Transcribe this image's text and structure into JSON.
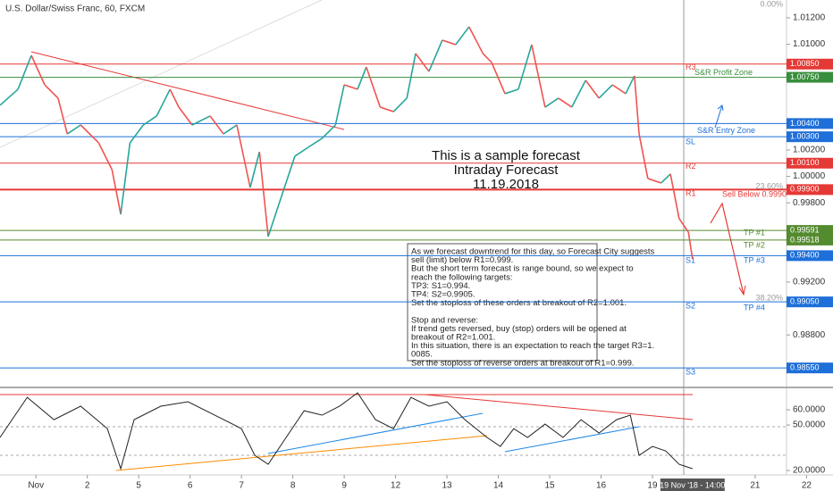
{
  "chart_data": {
    "type": "line",
    "title": "U.S. Dollar/Swiss Franc, 60, FXCM",
    "forecast_title": [
      "This is a sample forecast",
      "Intraday Forecast",
      "11.19.2018"
    ],
    "note": [
      "As we forecast downtrend for this day, so Forecast City suggests",
      "sell (limit) below R1=0.999.",
      "But the short term forecast is range bound, so we expect to",
      "reach the following targets:",
      "TP3: S1=0.994.",
      "TP4: S2=0.9905.",
      "Set the stoploss of these orders at breakout of R2=1.001.",
      "Stop and reverse:",
      "If trend gets reversed, buy (stop) orders will be opened at",
      "breakout of R2=1.001.",
      "In this situation, there is an expectation to reach the target R3=1.",
      "0085.",
      "Set the stoploss of reverse orders at breakout of R1=0.999."
    ],
    "x": [
      -0.7,
      -0.35,
      -0.09,
      0.17,
      0.43,
      0.61,
      0.87,
      1.22,
      1.48,
      1.65,
      1.83,
      2.09,
      2.35,
      2.61,
      2.78,
      3.04,
      3.39,
      3.65,
      3.91,
      4.17,
      4.35,
      4.52,
      4.78,
      5.04,
      5.3,
      5.57,
      5.83,
      6.0,
      6.26,
      6.43,
      6.7,
      6.96,
      7.22,
      7.39,
      7.65,
      7.91,
      8.17,
      8.43,
      8.7,
      8.87,
      9.13,
      9.39,
      9.65,
      9.91,
      10.17,
      10.43,
      10.7,
      10.96,
      11.22,
      11.48,
      11.65,
      11.74,
      11.91,
      12.17,
      12.35,
      12.52,
      12.7,
      12.78
    ],
    "values": [
      1.00538,
      1.00659,
      1.00916,
      1.00693,
      1.00592,
      1.00321,
      1.00389,
      1.00254,
      1.00051,
      0.99713,
      1.00254,
      1.00389,
      1.00457,
      1.00659,
      1.00524,
      1.00389,
      1.00457,
      1.00321,
      1.00389,
      0.99916,
      1.00186,
      0.99544,
      0.99849,
      1.00153,
      1.0022,
      1.00288,
      1.00389,
      1.00693,
      1.00659,
      1.00828,
      1.00524,
      1.0049,
      1.00592,
      1.0093,
      1.00794,
      1.01031,
      1.00997,
      1.01132,
      1.0093,
      1.00862,
      1.00626,
      1.00659,
      1.00997,
      1.00524,
      1.00592,
      1.00524,
      1.00727,
      1.00592,
      1.00693,
      1.00626,
      1.00761,
      1.00321,
      0.99984,
      0.9995,
      1.00018,
      0.9968,
      0.99578,
      0.99375
    ],
    "up_color": "#26a69a",
    "down_color": "#ef5350",
    "xlim": [
      -0.7,
      14.61
    ],
    "xticks": [
      {
        "value": 0,
        "label": "Nov"
      },
      {
        "value": 1,
        "label": "2"
      },
      {
        "value": 2,
        "label": "5"
      },
      {
        "value": 3,
        "label": "6"
      },
      {
        "value": 4,
        "label": "7"
      },
      {
        "value": 5,
        "label": "8"
      },
      {
        "value": 6,
        "label": "9"
      },
      {
        "value": 7,
        "label": "12"
      },
      {
        "value": 8,
        "label": "13"
      },
      {
        "value": 9,
        "label": "14"
      },
      {
        "value": 10,
        "label": "15"
      },
      {
        "value": 11,
        "label": "16"
      },
      {
        "value": 12,
        "label": "19"
      },
      {
        "value": 14,
        "label": "21"
      },
      {
        "value": 15,
        "label": "22"
      }
    ],
    "crosshair": {
      "value": 12.78,
      "label": "19 Nov '18 - 14:00"
    },
    "ylim": [
      0.98416,
      1.01335
    ],
    "yticks": [
      {
        "value": 1.012,
        "label": "1.01200"
      },
      {
        "value": 1.01,
        "label": "1.01000"
      },
      {
        "value": 1.002,
        "label": "1.00200"
      },
      {
        "value": 1.0,
        "label": "1.00000"
      },
      {
        "value": 0.998,
        "label": "0.99800"
      },
      {
        "value": 0.992,
        "label": "0.99200"
      },
      {
        "value": 0.988,
        "label": "0.98800"
      }
    ],
    "levels": [
      {
        "value": 1.0085,
        "label": "1.00850",
        "color": "#e53935",
        "tag": "R3"
      },
      {
        "value": 1.0075,
        "label": "1.00750",
        "color": "#388e3c",
        "tag": "S&R Profit Zone"
      },
      {
        "value": 1.004,
        "label": "1.00400",
        "color": "#1e6fd9",
        "tag": "S&R Entry Zone"
      },
      {
        "value": 1.003,
        "label": "1.00300",
        "color": "#1e6fd9",
        "tag": "SL"
      },
      {
        "value": 1.001,
        "label": "1.00100",
        "color": "#e53935",
        "tag": "R2"
      },
      {
        "value": 0.999,
        "label": "0.99900",
        "color": "#e53935",
        "tag": "R1"
      },
      {
        "value": 0.99591,
        "label": "0.99591",
        "color": "#558b2f",
        "tag": "TP #1"
      },
      {
        "value": 0.99518,
        "label": "0.99518",
        "color": "#558b2f",
        "tag": "TP #2"
      },
      {
        "value": 0.994,
        "label": "0.99400",
        "color": "#1e6fd9",
        "tag": "S1"
      },
      {
        "value": 0.9905,
        "label": "0.99050",
        "color": "#1e6fd9",
        "tag": "S2"
      },
      {
        "value": 0.9855,
        "label": "0.98550",
        "color": "#1e6fd9",
        "tag": "S3"
      }
    ],
    "extra_tags": [
      "Sell Below 0.9990",
      "TP #3",
      "TP #4"
    ],
    "fib_labels": [
      "0.00%",
      "23.60%",
      "38.20%"
    ],
    "rsi": {
      "x": [
        -0.7,
        -0.17,
        0.35,
        0.87,
        1.39,
        1.65,
        1.91,
        2.43,
        2.96,
        3.48,
        4.0,
        4.26,
        4.52,
        4.87,
        5.22,
        5.57,
        5.91,
        6.26,
        6.61,
        6.96,
        7.3,
        7.65,
        8.0,
        8.35,
        8.78,
        9.04,
        9.3,
        9.57,
        9.91,
        10.26,
        10.61,
        10.96,
        11.3,
        11.57,
        11.74,
        12.0,
        12.26,
        12.52,
        12.78
      ],
      "values": [
        41.8,
        68.2,
        53.5,
        62.4,
        47.6,
        21.2,
        53.5,
        62.4,
        65.3,
        56.5,
        47.6,
        30.0,
        24.1,
        41.8,
        59.4,
        56.5,
        62.4,
        71.2,
        53.5,
        47.6,
        68.2,
        62.4,
        65.3,
        53.5,
        41.8,
        35.9,
        47.6,
        41.8,
        50.6,
        41.8,
        53.5,
        44.7,
        53.5,
        56.5,
        30.0,
        35.9,
        32.9,
        24.1,
        21.2
      ],
      "color": "#222",
      "ylim": [
        17.1,
        72.4
      ],
      "yticks": [
        {
          "value": 60,
          "label": "60.0000"
        },
        {
          "value": 50,
          "label": "50.0000"
        },
        {
          "value": 20,
          "label": "20.0000"
        }
      ]
    }
  }
}
